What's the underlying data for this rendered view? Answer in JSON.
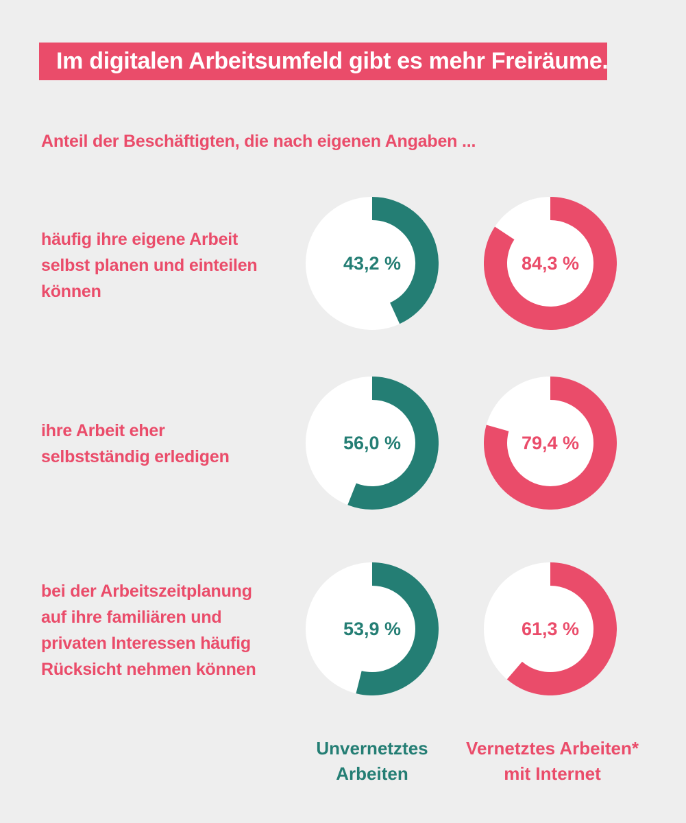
{
  "header": {
    "title": "Im digitalen Arbeitsumfeld gibt es mehr Freiräume.",
    "subtitle": "Anteil der Beschäftigten, die nach eigenen Angaben ..."
  },
  "colors": {
    "background": "#eeeeee",
    "pink": "#ea4c6a",
    "teal": "#247e74",
    "track": "#ffffff"
  },
  "chart_data": {
    "type": "donut",
    "title": "Im digitalen Arbeitsumfeld gibt es mehr Freiräume.",
    "subtitle": "Anteil der Beschäftigten, die nach eigenen Angaben ...",
    "unit": "%",
    "series": [
      {
        "name": "Unvernetztes Arbeiten",
        "color": "#247e74"
      },
      {
        "name": "Vernetztes Arbeiten* mit Internet",
        "color": "#ea4c6a"
      }
    ],
    "rows": [
      {
        "label": "häufig ihre eigene Arbeit selbst planen und einteilen können",
        "label_lines": [
          "häufig ihre eigene Arbeit",
          "selbst planen und einteilen",
          "können"
        ],
        "values": [
          43.2,
          84.3
        ],
        "value_labels": [
          "43,2 %",
          "84,3 %"
        ]
      },
      {
        "label": "ihre Arbeit eher selbstständig erledigen",
        "label_lines": [
          "ihre Arbeit eher",
          "selbstständig erledigen"
        ],
        "values": [
          56.0,
          79.4
        ],
        "value_labels": [
          "56,0 %",
          "79,4 %"
        ]
      },
      {
        "label": "bei der Arbeitszeitplanung auf ihre familiären und privaten Interessen häufig Rücksicht nehmen können",
        "label_lines": [
          "bei der Arbeitszeitplanung",
          "auf ihre familiären und",
          "privaten Interessen häufig",
          "Rücksicht nehmen können"
        ],
        "values": [
          53.9,
          61.3
        ],
        "value_labels": [
          "53,9 %",
          "61,3 %"
        ]
      }
    ]
  },
  "legend": {
    "unvernetzt": {
      "line1": "Unvernetztes",
      "line2": "Arbeiten"
    },
    "vernetzt": {
      "line1": "Vernetztes Arbeiten*",
      "line2": "mit Internet"
    }
  }
}
